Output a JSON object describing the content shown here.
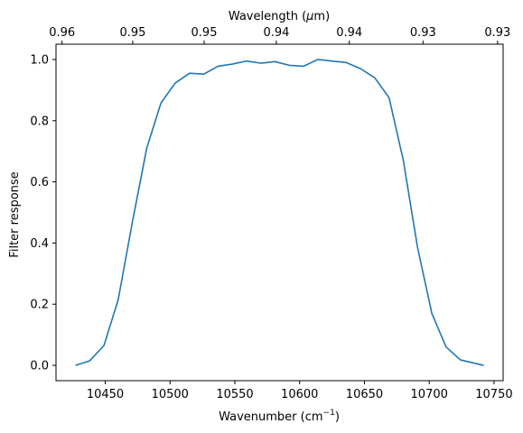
{
  "chart_data": {
    "type": "line",
    "xlabel": "Wavenumber (cm",
    "xlabel_sup": "−1",
    "xlabel_suffix": ")",
    "ylabel": "Filter response",
    "top_xlabel": "Wavelength (",
    "top_xlabel_mu": "μ",
    "top_xlabel_suffix": "m)",
    "xlim": [
      10412,
      10757
    ],
    "ylim": [
      -0.05,
      1.05
    ],
    "xticks": [
      10450,
      10500,
      10550,
      10600,
      10650,
      10700,
      10750
    ],
    "xtick_labels": [
      "10450",
      "10500",
      "10550",
      "10600",
      "10650",
      "10700",
      "10750"
    ],
    "yticks": [
      0.0,
      0.2,
      0.4,
      0.6,
      0.8,
      1.0
    ],
    "ytick_labels": [
      "0.0",
      "0.2",
      "0.4",
      "0.6",
      "0.8",
      "1.0"
    ],
    "top_ticks": [
      0.96,
      0.955,
      0.95,
      0.945,
      0.94,
      0.935,
      0.93
    ],
    "top_tick_labels": [
      "0.96",
      "0.95",
      "0.95",
      "0.94",
      "0.94",
      "0.93",
      "0.93"
    ],
    "grid": false,
    "legend": "none",
    "series": [
      {
        "color": "#1f77b4",
        "x": [
          10427,
          10438,
          10449,
          10460,
          10471,
          10482,
          10493,
          10504,
          10515,
          10526,
          10537,
          10548,
          10559,
          10570,
          10581,
          10592,
          10603,
          10614,
          10625,
          10636,
          10647,
          10658,
          10669,
          10680,
          10691,
          10702,
          10713,
          10724,
          10742
        ],
        "y": [
          0.0,
          0.015,
          0.065,
          0.215,
          0.47,
          0.71,
          0.858,
          0.923,
          0.955,
          0.952,
          0.978,
          0.985,
          0.995,
          0.988,
          0.993,
          0.981,
          0.978,
          1.0,
          0.995,
          0.99,
          0.97,
          0.94,
          0.875,
          0.67,
          0.385,
          0.17,
          0.06,
          0.018,
          0.0
        ]
      }
    ]
  }
}
